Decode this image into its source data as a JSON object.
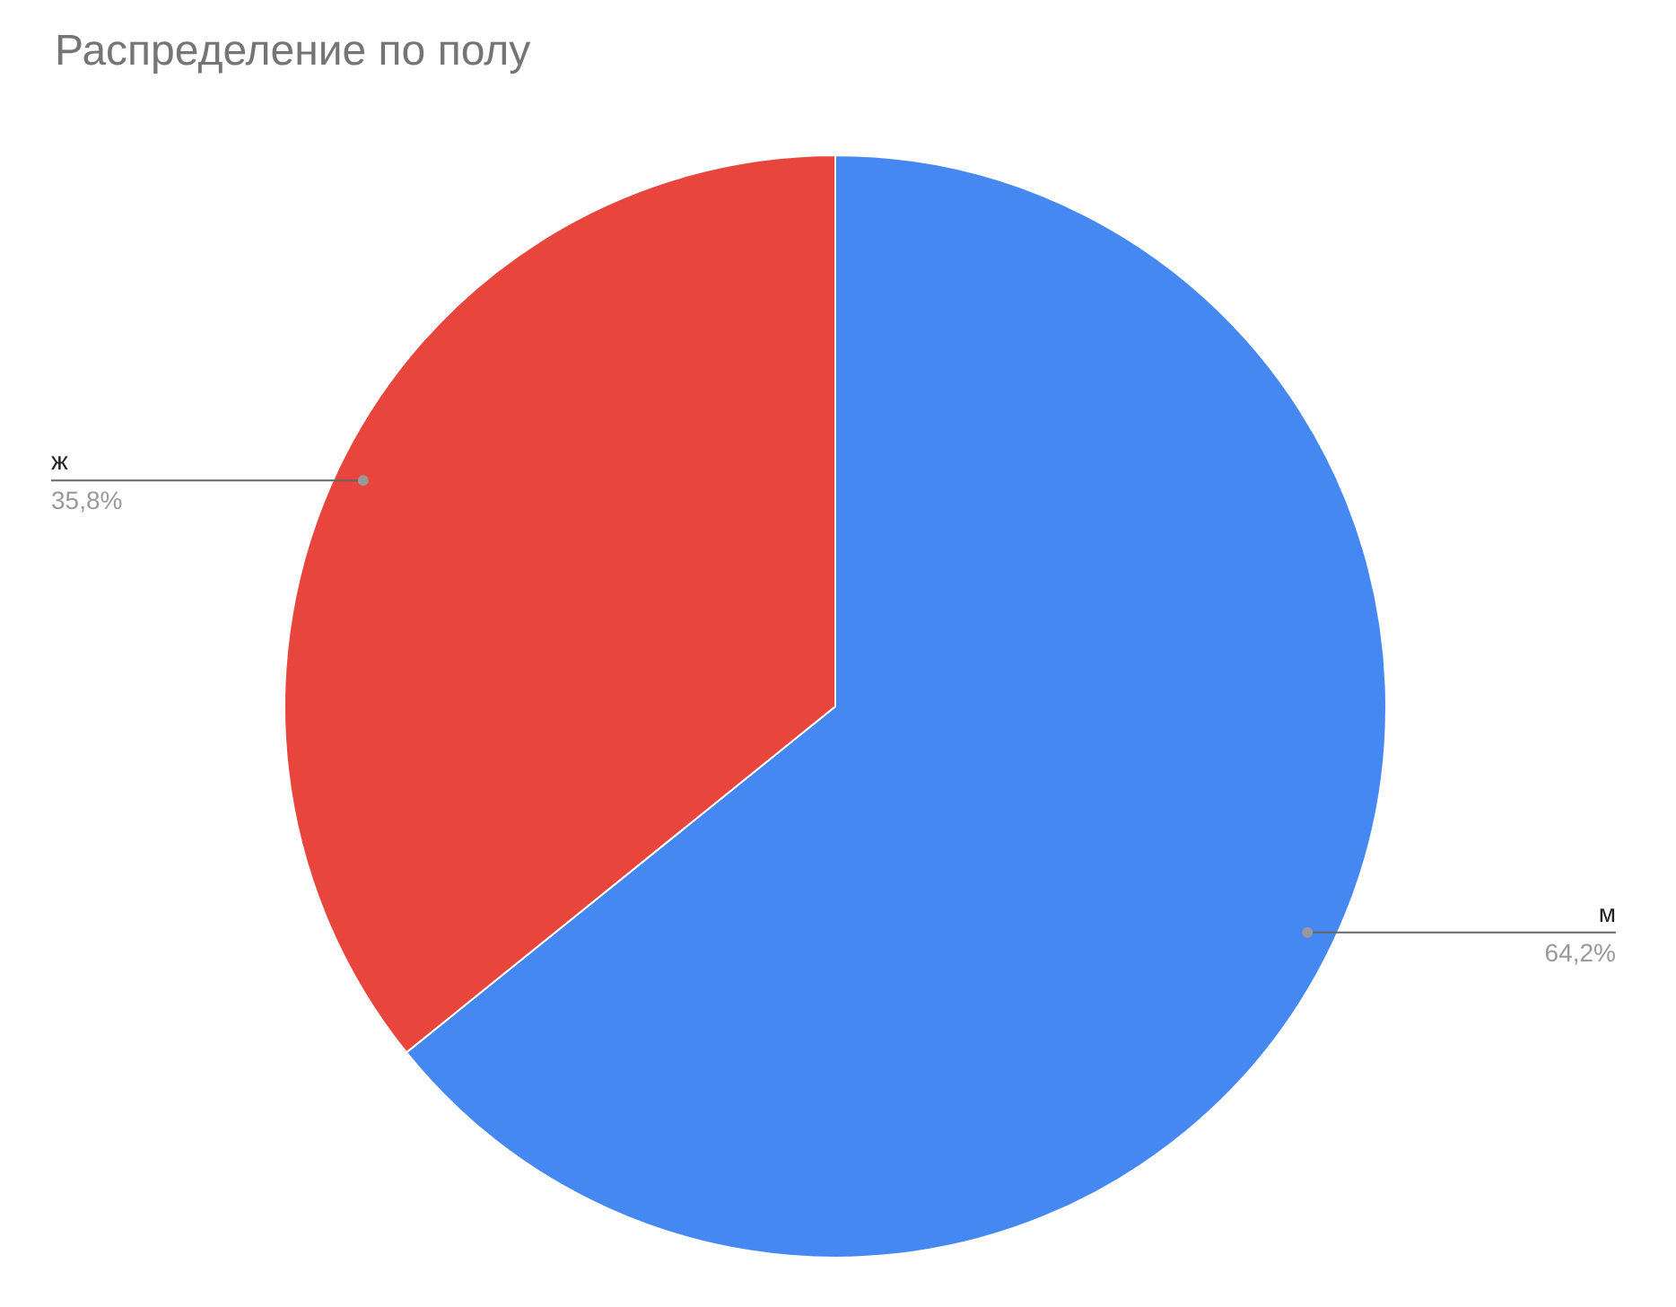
{
  "chart_data": {
    "type": "pie",
    "title": "Распределение по полу",
    "categories": [
      "м",
      "ж"
    ],
    "values": [
      64.2,
      35.8
    ],
    "colors": [
      "#4688f1",
      "#e8453c"
    ],
    "value_labels": [
      "64,2%",
      "35,8%"
    ]
  }
}
